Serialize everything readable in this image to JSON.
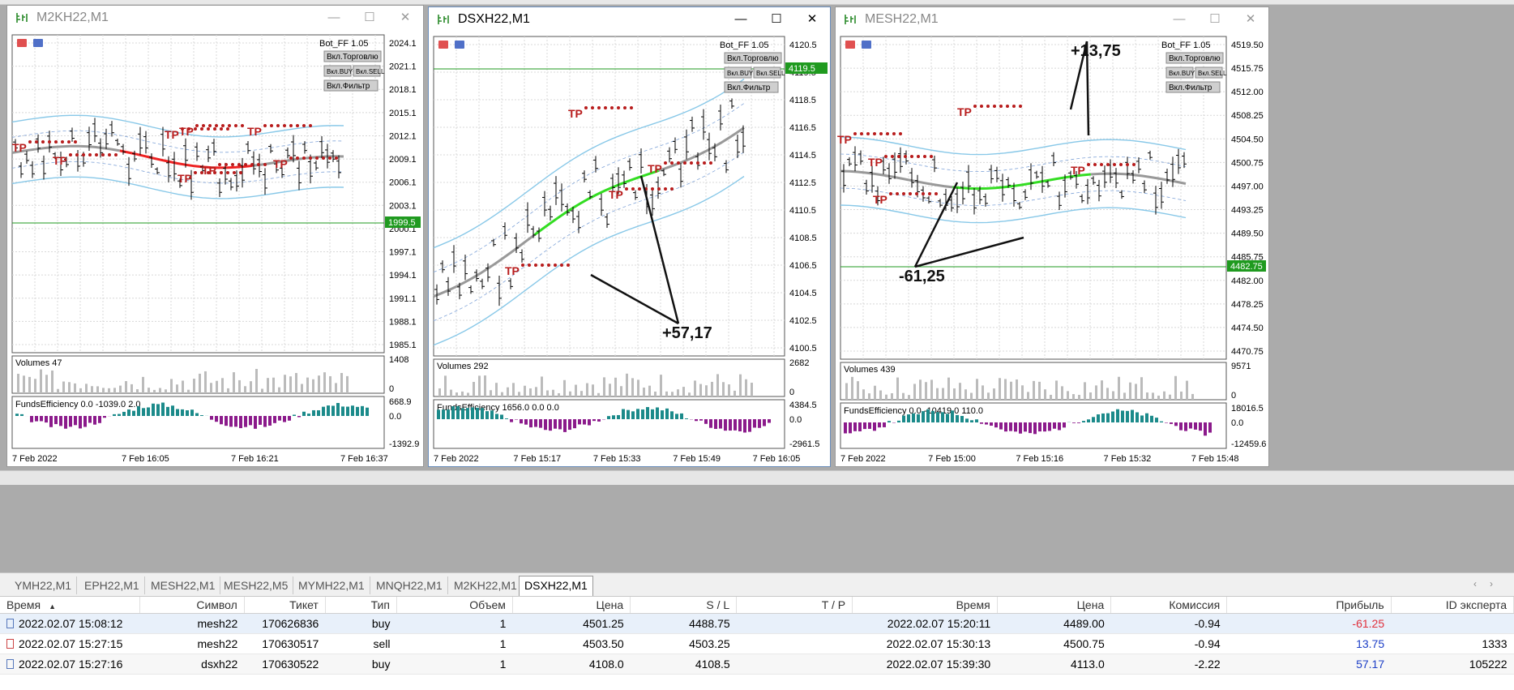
{
  "tabs": [
    "YMH22,M1",
    "EPH22,M1",
    "MESH22,M1",
    "MESH22,M5",
    "MYMH22,M1",
    "MNQH22,M1",
    "M2KH22,M1",
    "DSXH22,M1"
  ],
  "active_tab": "DSXH22,M1",
  "windows": [
    {
      "title": "M2KH22,M1",
      "active": false,
      "indicator": "Bot_FF 1.05",
      "buttons": [
        "Вкл.Торговлю",
        "Вкл.BUY",
        "Вкл.SELL",
        "Вкл.Фильтр"
      ],
      "price_labels": [
        "2024.1",
        "2021.1",
        "2018.1",
        "2015.1",
        "2012.1",
        "2009.1",
        "2006.1",
        "2003.1",
        "2000.1",
        "1997.1",
        "1994.1",
        "1991.1",
        "1988.1",
        "1985.1"
      ],
      "current_price": "1999.5",
      "volumes_label": "Volumes 47",
      "volumes_scale": [
        "1408",
        "0"
      ],
      "fe_label": "FundsEfficiency 0.0 -1039.0 2.0",
      "fe_scale": [
        "668.9",
        "0.0",
        "-1392.9"
      ],
      "time_labels": [
        "7 Feb 2022",
        "7 Feb 16:05",
        "7 Feb 16:21",
        "7 Feb 16:37"
      ]
    },
    {
      "title": "DSXH22,M1",
      "active": true,
      "indicator": "Bot_FF 1.05",
      "buttons": [
        "Вкл.Торговлю",
        "Вкл.BUY",
        "Вкл.SELL",
        "Вкл.Фильтр"
      ],
      "price_labels": [
        "4120.5",
        "4119.5",
        "4118.5",
        "4116.5",
        "4114.5",
        "4112.5",
        "4110.5",
        "4108.5",
        "4106.5",
        "4104.5",
        "4102.5",
        "4100.5"
      ],
      "current_price": "4119.5",
      "annotation": "+57,17",
      "volumes_label": "Volumes 292",
      "volumes_scale": [
        "2682",
        "0"
      ],
      "fe_label": "FundsEfficiency 1656.0 0.0 0.0",
      "fe_scale": [
        "4384.5",
        "0.0",
        "-2961.5"
      ],
      "time_labels": [
        "7 Feb 2022",
        "7 Feb 15:17",
        "7 Feb 15:33",
        "7 Feb 15:49",
        "7 Feb 16:05"
      ]
    },
    {
      "title": "MESH22,M1",
      "active": false,
      "indicator": "Bot_FF 1.05",
      "buttons": [
        "Вкл.Торговлю",
        "Вкл.BUY",
        "Вкл.SELL",
        "Вкл.Фильтр"
      ],
      "price_labels": [
        "4519.50",
        "4515.75",
        "4512.00",
        "4508.25",
        "4504.50",
        "4500.75",
        "4497.00",
        "4493.25",
        "4489.50",
        "4485.75",
        "4482.00",
        "4478.25",
        "4474.50",
        "4470.75"
      ],
      "current_price": "4482.75",
      "annotations": [
        "+13,75",
        "-61,25"
      ],
      "volumes_label": "Volumes 439",
      "volumes_scale": [
        "9571",
        "0"
      ],
      "fe_label": "FundsEfficiency 0.0 -10419.0 110.0",
      "fe_scale": [
        "18016.5",
        "0.0",
        "-12459.6"
      ],
      "time_labels": [
        "7 Feb 2022",
        "7 Feb 15:00",
        "7 Feb 15:16",
        "7 Feb 15:32",
        "7 Feb 15:48"
      ]
    }
  ],
  "trades": {
    "columns": [
      "Время",
      "Символ",
      "Тикет",
      "Тип",
      "Объем",
      "Цена",
      "S / L",
      "T / P",
      "Время",
      "Цена",
      "Комиссия",
      "Прибыль",
      "ID эксперта"
    ],
    "rows": [
      [
        "2022.02.07 15:08:12",
        "mesh22",
        "170626836",
        "buy",
        "1",
        "4501.25",
        "4488.75",
        "",
        "2022.02.07 15:20:11",
        "4489.00",
        "-0.94",
        "-61.25",
        ""
      ],
      [
        "2022.02.07 15:27:15",
        "mesh22",
        "170630517",
        "sell",
        "1",
        "4503.50",
        "4503.25",
        "",
        "2022.02.07 15:30:13",
        "4500.75",
        "-0.94",
        "13.75",
        "1333"
      ],
      [
        "2022.02.07 15:27:16",
        "dsxh22",
        "170630522",
        "buy",
        "1",
        "4108.0",
        "4108.5",
        "",
        "2022.02.07 15:39:30",
        "4113.0",
        "-2.22",
        "57.17",
        "105222"
      ]
    ]
  },
  "colors": {
    "green_ma": "#33dd22",
    "red_ma": "#ee2222",
    "gray_ma": "#999999",
    "band": "#88c8e8",
    "tp": "#b81c1c",
    "fe_pos": "#1b8a8a",
    "fe_neg": "#8b1a8b",
    "price_tag": "#1f9a1f"
  }
}
